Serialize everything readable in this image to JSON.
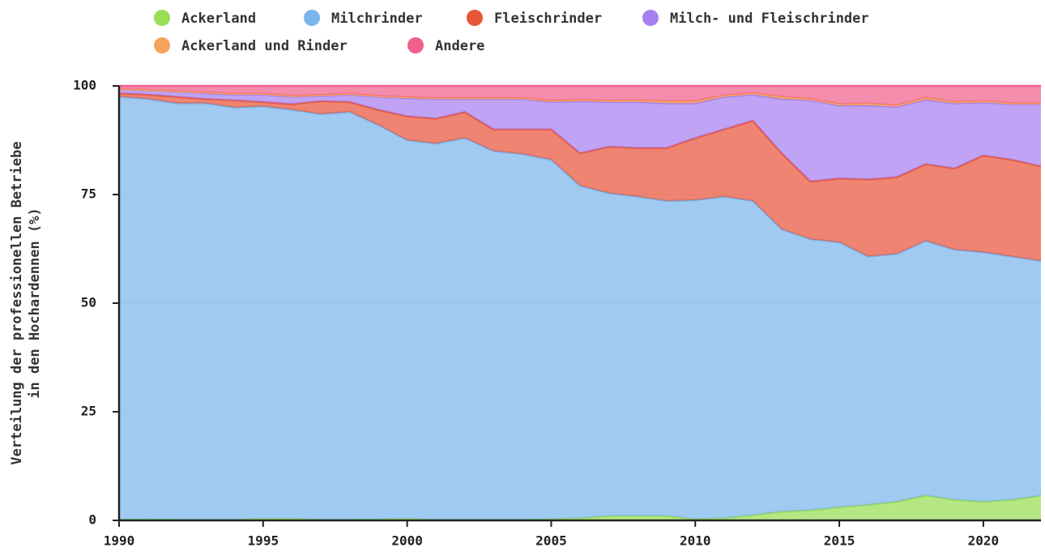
{
  "chart_data": {
    "type": "stacked-area",
    "ylabel": [
      "Verteilung der professionellen Betriebe",
      "in den Hochardennen (%)"
    ],
    "x": [
      1990,
      1991,
      1992,
      1993,
      1994,
      1995,
      1996,
      1997,
      1998,
      1999,
      2000,
      2001,
      2002,
      2003,
      2004,
      2005,
      2006,
      2007,
      2008,
      2009,
      2010,
      2011,
      2012,
      2013,
      2014,
      2015,
      2016,
      2017,
      2018,
      2019,
      2020,
      2021,
      2022
    ],
    "xlim": [
      1990,
      2022
    ],
    "xticks": [
      1990,
      1995,
      2000,
      2005,
      2010,
      2015,
      2020
    ],
    "ylim": [
      0,
      100
    ],
    "yticks": [
      0,
      25,
      50,
      75,
      100
    ],
    "grid": true,
    "series": [
      {
        "name": "Ackerland",
        "color": "#9ade55",
        "values": [
          0.2,
          0.3,
          0.2,
          0.2,
          0.2,
          0.4,
          0.4,
          0.2,
          0.2,
          0.3,
          0.4,
          0.2,
          0.2,
          0.2,
          0.2,
          0.3,
          0.5,
          1.0,
          1.0,
          1.0,
          0.3,
          0.5,
          1.2,
          2.0,
          2.3,
          3.0,
          3.6,
          4.3,
          5.7,
          4.7,
          4.3,
          4.7,
          5.7
        ]
      },
      {
        "name": "Milchrinder",
        "color": "#7cb5ec",
        "values": [
          97.3,
          96.7,
          95.8,
          95.8,
          94.8,
          94.9,
          94.1,
          93.3,
          93.8,
          90.7,
          87.1,
          86.5,
          87.8,
          84.8,
          84.1,
          82.7,
          76.5,
          74.3,
          73.5,
          72.5,
          73.4,
          74.0,
          72.3,
          65.0,
          62.4,
          61.0,
          57.1,
          57.0,
          58.6,
          57.6,
          57.4,
          56.0,
          54.0
        ]
      },
      {
        "name": "Fleischrinder",
        "color": "#e8553a",
        "values": [
          0.8,
          1.0,
          1.5,
          1.0,
          1.7,
          1.0,
          1.3,
          3.0,
          2.3,
          3.5,
          5.5,
          5.8,
          6.0,
          5.0,
          5.7,
          7.0,
          7.5,
          10.7,
          11.2,
          12.2,
          14.3,
          15.5,
          18.5,
          17.5,
          13.3,
          14.7,
          17.8,
          17.7,
          17.7,
          18.7,
          22.3,
          22.3,
          21.8
        ]
      },
      {
        "name": "Milch- und Fleischrinder",
        "color": "#a87ff0",
        "values": [
          0.9,
          1.0,
          1.2,
          1.3,
          1.3,
          1.7,
          1.7,
          1.2,
          1.7,
          3.0,
          4.2,
          4.5,
          3.0,
          7.0,
          7.0,
          6.3,
          12.0,
          10.3,
          10.6,
          10.3,
          8.0,
          7.5,
          6.0,
          12.5,
          18.7,
          16.8,
          17.0,
          16.2,
          14.8,
          15.0,
          12.2,
          12.8,
          14.3
        ]
      },
      {
        "name": "Ackerland und Rinder",
        "color": "#f7a35c",
        "values": [
          0.1,
          0.1,
          0.1,
          0.2,
          0.2,
          0.2,
          0.2,
          0.2,
          0.2,
          0.2,
          0.2,
          0.2,
          0.2,
          0.2,
          0.2,
          0.3,
          0.3,
          0.3,
          0.4,
          0.5,
          0.5,
          0.3,
          0.3,
          0.5,
          0.3,
          0.3,
          0.5,
          0.3,
          0.5,
          0.3,
          0.3,
          0.2,
          0.2
        ]
      },
      {
        "name": "Andere",
        "color": "#f0608a",
        "values": [
          0.7,
          0.9,
          1.2,
          1.5,
          1.8,
          1.8,
          2.3,
          2.1,
          1.8,
          2.3,
          2.6,
          2.8,
          2.8,
          2.8,
          2.8,
          3.4,
          3.2,
          3.4,
          3.3,
          3.5,
          3.5,
          2.2,
          1.7,
          2.5,
          3.0,
          4.2,
          4.0,
          4.5,
          2.7,
          3.7,
          3.5,
          4.0,
          4.0
        ]
      }
    ]
  }
}
